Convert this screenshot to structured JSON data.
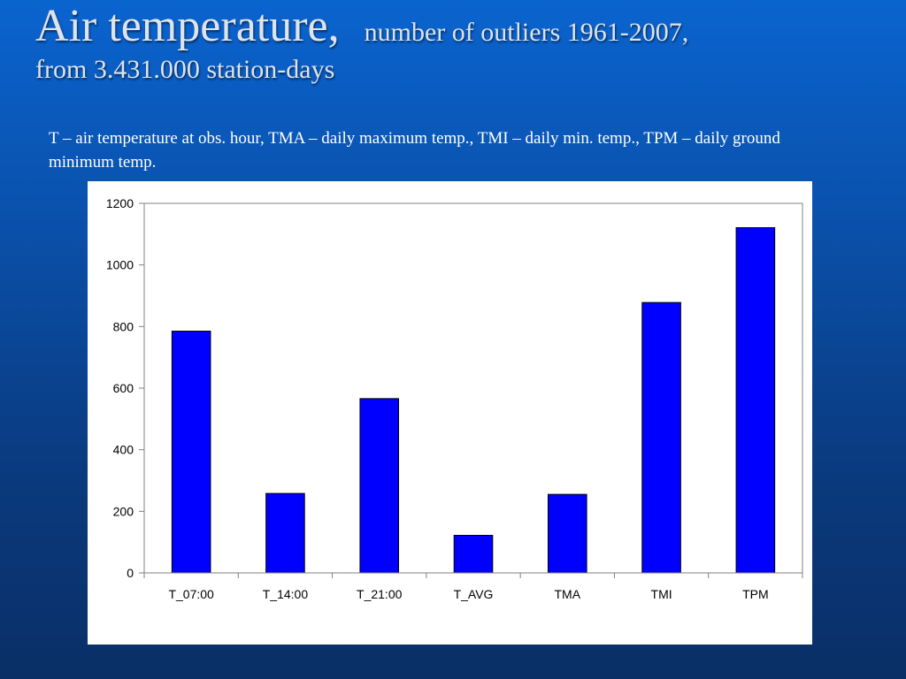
{
  "slide": {
    "title_main": "Air temperature,",
    "title_sub": "number of outliers 1961-2007,",
    "title_line2": "from 3.431.000 station-days",
    "caption": "T – air temperature at obs. hour,  TMA – daily maximum temp., TMI – daily min. temp., TPM – daily ground minimum temp."
  },
  "colors": {
    "bar_fill": "#0000ff",
    "bar_stroke": "#000000",
    "background_top": "#0a64cf",
    "background_bottom": "#0a2f66",
    "title_text": "#dfe3ea"
  },
  "chart_data": {
    "type": "bar",
    "title": "",
    "xlabel": "",
    "ylabel": "",
    "categories": [
      "T_07:00",
      "T_14:00",
      "T_21:00",
      "T_AVG",
      "TMA",
      "TMI",
      "TPM"
    ],
    "values": [
      785,
      258,
      566,
      122,
      255,
      878,
      1121
    ],
    "ylim": [
      0,
      1200
    ],
    "yticks": [
      0,
      200,
      400,
      600,
      800,
      1000,
      1200
    ],
    "grid": false,
    "legend": "none"
  }
}
